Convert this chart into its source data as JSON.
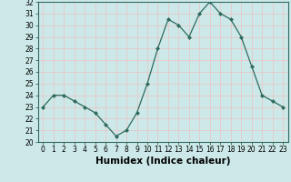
{
  "x": [
    0,
    1,
    2,
    3,
    4,
    5,
    6,
    7,
    8,
    9,
    10,
    11,
    12,
    13,
    14,
    15,
    16,
    17,
    18,
    19,
    20,
    21,
    22,
    23
  ],
  "y": [
    23,
    24,
    24,
    23.5,
    23,
    22.5,
    21.5,
    20.5,
    21,
    22.5,
    25,
    28,
    30.5,
    30,
    29,
    31,
    32,
    31,
    30.5,
    29,
    26.5,
    24,
    23.5,
    23
  ],
  "line_color": "#2e6b5e",
  "marker": "D",
  "marker_size": 2.0,
  "bg_color": "#cde8e8",
  "grid_color": "#e8c8c8",
  "xlabel": "Humidex (Indice chaleur)",
  "ylim": [
    20,
    32
  ],
  "xlim_min": -0.5,
  "xlim_max": 23.5,
  "yticks": [
    20,
    21,
    22,
    23,
    24,
    25,
    26,
    27,
    28,
    29,
    30,
    31,
    32
  ],
  "xticks": [
    0,
    1,
    2,
    3,
    4,
    5,
    6,
    7,
    8,
    9,
    10,
    11,
    12,
    13,
    14,
    15,
    16,
    17,
    18,
    19,
    20,
    21,
    22,
    23
  ],
  "xlabel_fontsize": 7.5,
  "tick_fontsize": 5.5
}
